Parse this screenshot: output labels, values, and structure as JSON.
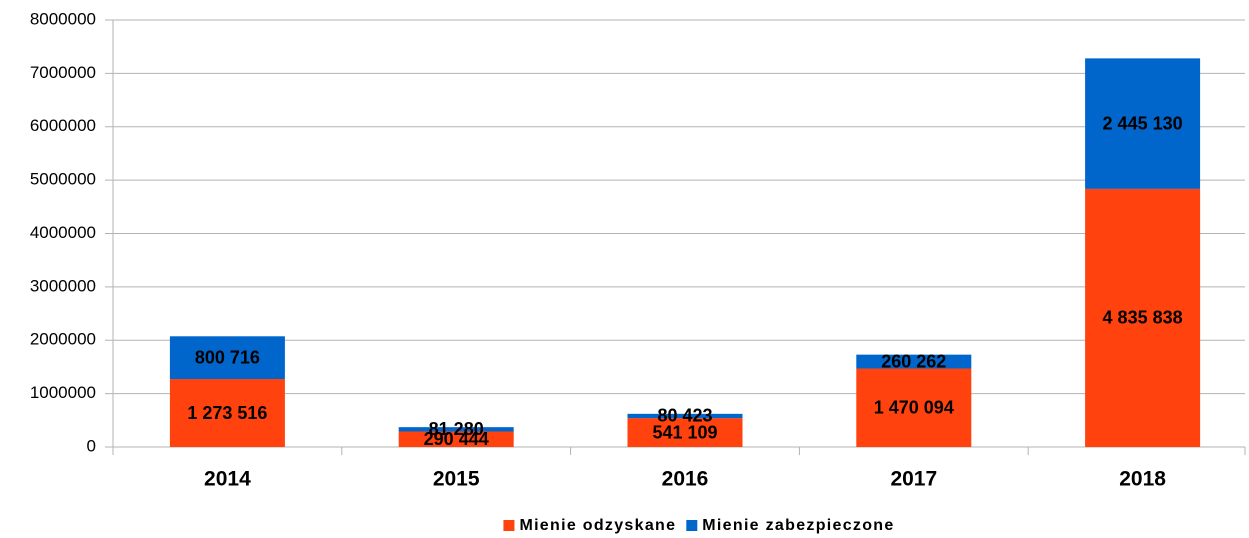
{
  "chart_data": {
    "type": "bar",
    "stacked": true,
    "categories": [
      "2014",
      "2015",
      "2016",
      "2017",
      "2018"
    ],
    "series": [
      {
        "name": "Mienie odzyskane",
        "color": "#ff420e",
        "values": [
          1273516,
          290444,
          541109,
          1470094,
          4835838
        ],
        "value_labels": [
          "1 273 516",
          "290 444",
          "541 109",
          "1 470 094",
          "4 835 838"
        ]
      },
      {
        "name": "Mienie zabezpieczone",
        "color": "#0066cc",
        "values": [
          800716,
          81280,
          80423,
          260262,
          2445130
        ],
        "value_labels": [
          "800 716",
          "81 280",
          "80 423",
          "260 262",
          "2 445 130"
        ]
      }
    ],
    "ylim": [
      0,
      8000000
    ],
    "yticks": [
      0,
      1000000,
      2000000,
      3000000,
      4000000,
      5000000,
      6000000,
      7000000,
      8000000
    ],
    "grid": true,
    "legend": "bottom"
  }
}
